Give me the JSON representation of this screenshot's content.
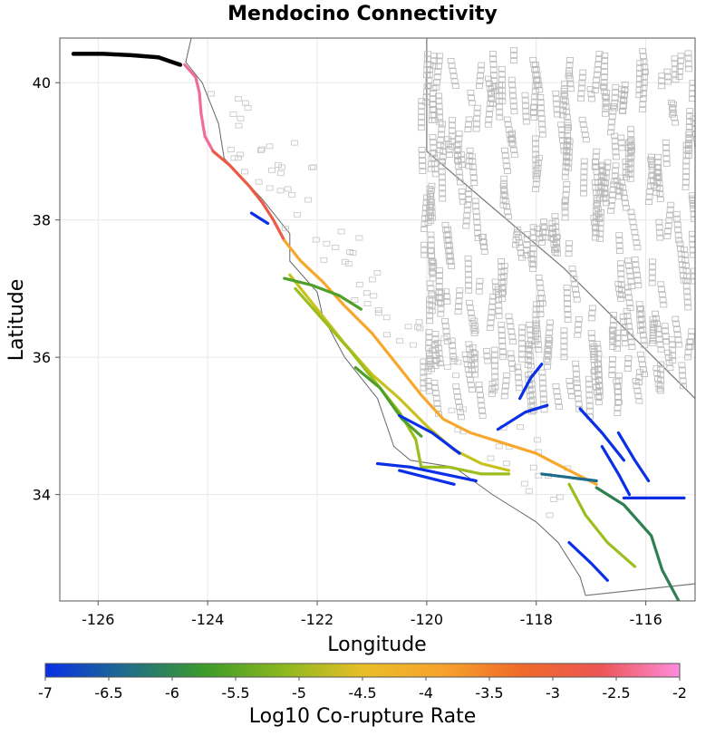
{
  "chart_data": {
    "type": "map",
    "title": "Mendocino Connectivity",
    "xlabel": "Longitude",
    "ylabel": "Latitude",
    "xlim": [
      -126.7,
      -115.1
    ],
    "ylim": [
      32.45,
      40.65
    ],
    "xticks": [
      -126,
      -124,
      -122,
      -120,
      -118,
      -116
    ],
    "yticks": [
      34,
      36,
      38,
      40
    ],
    "grid": true,
    "colorbar": {
      "label": "Log10 Co-rupture Rate",
      "min": -7,
      "max": -2,
      "ticks": [
        "-7",
        "-6.5",
        "-6",
        "-5.5",
        "-5",
        "-4.5",
        "-4",
        "-3.5",
        "-3",
        "-2.5",
        "-2"
      ],
      "colors": [
        "#0a2fe6",
        "#1e6c8c",
        "#3c9a2a",
        "#8cb81e",
        "#e8be28",
        "#f7a32c",
        "#ef6a28",
        "#ec5555",
        "#ff8cdc"
      ]
    },
    "series": [
      {
        "rate": null,
        "color": "#000000",
        "points": [
          [
            -126.45,
            40.42
          ],
          [
            -125.9,
            40.42
          ],
          [
            -125.4,
            40.4
          ],
          [
            -124.9,
            40.37
          ],
          [
            -124.5,
            40.26
          ]
        ]
      },
      {
        "rate": -2.2,
        "color": "#f06e95",
        "points": [
          [
            -124.42,
            40.26
          ],
          [
            -124.22,
            40.08
          ],
          [
            -124.15,
            39.85
          ],
          [
            -124.12,
            39.55
          ],
          [
            -124.05,
            39.22
          ],
          [
            -123.9,
            39.0
          ]
        ]
      },
      {
        "rate": -3.0,
        "color": "#ec5a45",
        "points": [
          [
            -123.9,
            39.0
          ],
          [
            -123.6,
            38.8
          ],
          [
            -123.25,
            38.5
          ],
          [
            -123.0,
            38.25
          ],
          [
            -122.8,
            38.0
          ],
          [
            -122.6,
            37.7
          ]
        ]
      },
      {
        "rate": -4.2,
        "color": "#f7a82c",
        "points": [
          [
            -122.6,
            37.7
          ],
          [
            -122.3,
            37.4
          ],
          [
            -121.9,
            37.1
          ],
          [
            -121.5,
            36.75
          ],
          [
            -121.0,
            36.35
          ],
          [
            -120.55,
            35.9
          ],
          [
            -120.1,
            35.45
          ],
          [
            -119.7,
            35.1
          ],
          [
            -119.2,
            34.9
          ],
          [
            -118.6,
            34.75
          ],
          [
            -118.0,
            34.6
          ],
          [
            -117.4,
            34.35
          ],
          [
            -116.9,
            34.15
          ]
        ]
      },
      {
        "rate": -4.8,
        "color": "#c8c21e",
        "points": [
          [
            -122.5,
            37.2
          ],
          [
            -122.0,
            36.7
          ],
          [
            -121.5,
            36.2
          ],
          [
            -121.0,
            35.75
          ],
          [
            -120.5,
            35.4
          ],
          [
            -120.0,
            35.0
          ],
          [
            -119.5,
            34.65
          ],
          [
            -119.0,
            34.45
          ],
          [
            -118.5,
            34.35
          ]
        ]
      },
      {
        "rate": -5.2,
        "color": "#9cbe1e",
        "points": [
          [
            -122.4,
            37.0
          ],
          [
            -121.9,
            36.55
          ],
          [
            -121.4,
            36.1
          ],
          [
            -120.9,
            35.6
          ],
          [
            -120.5,
            35.2
          ],
          [
            -120.2,
            34.8
          ],
          [
            -120.1,
            34.4
          ],
          [
            -119.6,
            34.4
          ],
          [
            -119.0,
            34.3
          ],
          [
            -118.5,
            34.3
          ]
        ]
      },
      {
        "rate": -5.7,
        "color": "#4ea02a",
        "points": [
          [
            -122.6,
            37.15
          ],
          [
            -122.1,
            37.05
          ],
          [
            -121.6,
            36.9
          ],
          [
            -121.2,
            36.7
          ]
        ]
      },
      {
        "rate": -5.7,
        "color": "#4ea02a",
        "points": [
          [
            -121.3,
            35.85
          ],
          [
            -120.85,
            35.55
          ],
          [
            -120.45,
            35.1
          ],
          [
            -120.1,
            34.85
          ]
        ]
      },
      {
        "rate": -5.3,
        "color": "#9cbe1e",
        "points": [
          [
            -117.4,
            34.15
          ],
          [
            -117.1,
            33.7
          ],
          [
            -116.7,
            33.3
          ],
          [
            -116.2,
            32.95
          ]
        ]
      },
      {
        "rate": -6.3,
        "color": "#2e8050",
        "points": [
          [
            -116.9,
            34.1
          ],
          [
            -116.4,
            33.85
          ],
          [
            -115.9,
            33.4
          ],
          [
            -115.7,
            32.9
          ],
          [
            -115.4,
            32.45
          ]
        ]
      },
      {
        "rate": -7.0,
        "color": "#0a2fe6",
        "points": [
          [
            -123.2,
            38.1
          ],
          [
            -122.9,
            37.95
          ]
        ]
      },
      {
        "rate": -7.0,
        "color": "#0a2fe6",
        "points": [
          [
            -120.5,
            35.15
          ],
          [
            -119.9,
            34.9
          ],
          [
            -119.4,
            34.6
          ]
        ]
      },
      {
        "rate": -7.0,
        "color": "#0a2fe6",
        "points": [
          [
            -120.9,
            34.45
          ],
          [
            -120.3,
            34.4
          ],
          [
            -119.7,
            34.3
          ],
          [
            -119.1,
            34.2
          ]
        ]
      },
      {
        "rate": -7.0,
        "color": "#0a2fe6",
        "points": [
          [
            -120.5,
            34.35
          ],
          [
            -120.0,
            34.25
          ],
          [
            -119.5,
            34.15
          ]
        ]
      },
      {
        "rate": -7.0,
        "color": "#0a2fe6",
        "points": [
          [
            -118.7,
            34.95
          ],
          [
            -118.2,
            35.2
          ],
          [
            -117.8,
            35.3
          ]
        ]
      },
      {
        "rate": -7.0,
        "color": "#0a2fe6",
        "points": [
          [
            -118.3,
            35.4
          ],
          [
            -118.1,
            35.7
          ],
          [
            -117.9,
            35.9
          ]
        ]
      },
      {
        "rate": -7.0,
        "color": "#0a2fe6",
        "points": [
          [
            -117.2,
            35.25
          ],
          [
            -116.8,
            34.9
          ],
          [
            -116.4,
            34.5
          ]
        ]
      },
      {
        "rate": -7.0,
        "color": "#0a2fe6",
        "points": [
          [
            -116.5,
            34.9
          ],
          [
            -116.2,
            34.5
          ],
          [
            -115.95,
            34.2
          ]
        ]
      },
      {
        "rate": -7.0,
        "color": "#0a2fe6",
        "points": [
          [
            -116.8,
            34.7
          ],
          [
            -116.5,
            34.3
          ],
          [
            -116.3,
            34.0
          ]
        ]
      },
      {
        "rate": -7.0,
        "color": "#0a2fe6",
        "points": [
          [
            -116.4,
            33.95
          ],
          [
            -115.9,
            33.95
          ],
          [
            -115.3,
            33.95
          ]
        ]
      },
      {
        "rate": -7.0,
        "color": "#0a2fe6",
        "points": [
          [
            -117.4,
            33.3
          ],
          [
            -117.0,
            33.0
          ],
          [
            -116.7,
            32.75
          ]
        ]
      },
      {
        "rate": -6.5,
        "color": "#1e6c8c",
        "points": [
          [
            -117.9,
            34.3
          ],
          [
            -117.4,
            34.25
          ],
          [
            -116.9,
            34.2
          ]
        ]
      }
    ]
  }
}
